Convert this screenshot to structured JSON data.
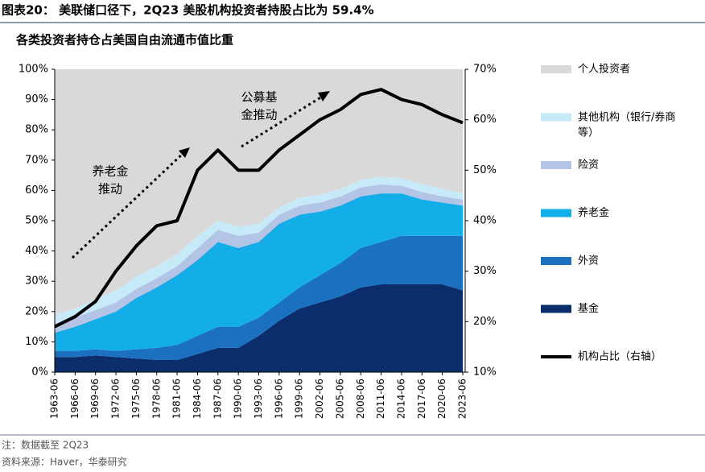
{
  "header": "图表20：  美联储口径下，2Q23 美股机构投资者持股占比为 59.4%",
  "footer": {
    "note": "注：数据截至 2Q23",
    "source": "资料来源：Haver，华泰研究"
  },
  "chart_data": {
    "type": "stacked_area_line",
    "title": "各类投资者持仓占美国自由流通市值比重",
    "categories": [
      "1963-06",
      "1966-06",
      "1969-06",
      "1972-06",
      "1975-06",
      "1978-06",
      "1981-06",
      "1984-06",
      "1987-06",
      "1990-06",
      "1993-06",
      "1996-06",
      "1999-06",
      "2002-06",
      "2005-06",
      "2008-06",
      "2011-06",
      "2014-06",
      "2017-06",
      "2020-06",
      "2023-06"
    ],
    "series": [
      {
        "name": "基金",
        "color": "#0b2d6b",
        "values": [
          5,
          5,
          5.5,
          5,
          4.5,
          4,
          4,
          6,
          8,
          8,
          12,
          17,
          21,
          23,
          25,
          28,
          29,
          29,
          29,
          29,
          27
        ]
      },
      {
        "name": "外资",
        "color": "#1b70bf",
        "values": [
          2,
          2,
          2,
          2,
          3,
          4,
          5,
          6,
          7,
          7,
          6,
          6,
          7,
          9,
          11,
          13,
          14,
          16,
          16,
          16,
          18
        ]
      },
      {
        "name": "养老金",
        "color": "#13aee8",
        "values": [
          6,
          8,
          10,
          13,
          17,
          20,
          23,
          25,
          28,
          26,
          25,
          26,
          24,
          21,
          19,
          17,
          16,
          14,
          12,
          11,
          10
        ]
      },
      {
        "name": "险资",
        "color": "#b4c4e6",
        "values": [
          3,
          3,
          3,
          3,
          3,
          3,
          3,
          4,
          4,
          4,
          3,
          3,
          3,
          3,
          3,
          3,
          3,
          2.5,
          2.5,
          2,
          2
        ]
      },
      {
        "name": "其他机构（银行/券商等）",
        "color": "#c6eaf8",
        "values": [
          3,
          3,
          3.5,
          4,
          4,
          4,
          4,
          4,
          3,
          3,
          3,
          2.5,
          2.5,
          2.5,
          2.5,
          2.5,
          2.5,
          2.5,
          2.5,
          2.5,
          2
        ]
      },
      {
        "name": "个人投资者",
        "color": "#d9d9d9",
        "values": [
          81,
          79,
          76,
          73,
          68.5,
          65,
          61,
          55,
          50,
          52,
          51,
          45.5,
          42.5,
          41.5,
          39.5,
          36.5,
          35.5,
          36,
          38,
          39.5,
          41
        ]
      },
      {
        "name": "机构占比（右轴）",
        "color": "#000000",
        "axis": "y2",
        "values": [
          19,
          21,
          24,
          30,
          35,
          39,
          40,
          50,
          54,
          50,
          50,
          54,
          57,
          60,
          62,
          65,
          66,
          64,
          63,
          61,
          59.4
        ]
      }
    ],
    "ylim": [
      0,
      100
    ],
    "yticks": [
      {
        "value": 0,
        "label": "0%"
      },
      {
        "value": 10,
        "label": "10%"
      },
      {
        "value": 20,
        "label": "20%"
      },
      {
        "value": 30,
        "label": "30%"
      },
      {
        "value": 40,
        "label": "40%"
      },
      {
        "value": 50,
        "label": "50%"
      },
      {
        "value": 60,
        "label": "60%"
      },
      {
        "value": 70,
        "label": "70%"
      },
      {
        "value": 80,
        "label": "80%"
      },
      {
        "value": 90,
        "label": "90%"
      },
      {
        "value": 100,
        "label": "100%"
      }
    ],
    "y2lim": [
      10,
      70
    ],
    "y2ticks": [
      {
        "value": 10,
        "label": "10%"
      },
      {
        "value": 20,
        "label": "20%"
      },
      {
        "value": 30,
        "label": "30%"
      },
      {
        "value": 40,
        "label": "40%"
      },
      {
        "value": 50,
        "label": "50%"
      },
      {
        "value": 60,
        "label": "60%"
      },
      {
        "value": 70,
        "label": "70%"
      }
    ],
    "annotations": [
      [
        "养老金",
        "推动"
      ],
      [
        "公募基",
        "金推动"
      ]
    ]
  }
}
